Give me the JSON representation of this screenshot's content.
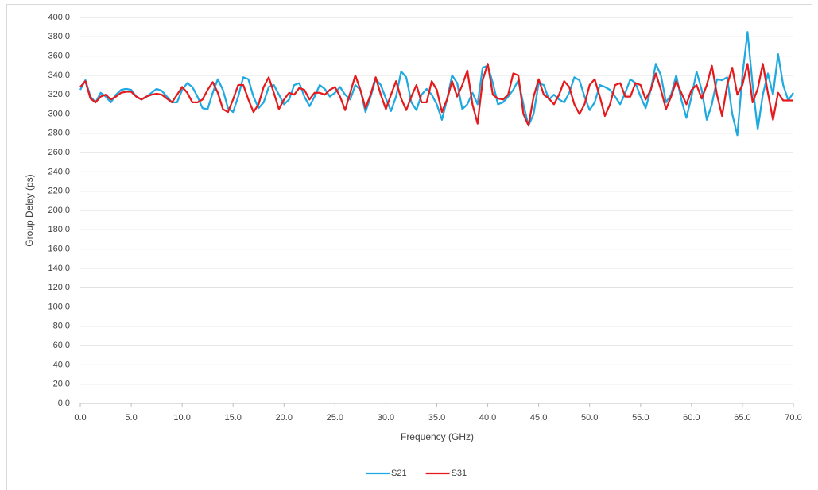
{
  "chart_data": {
    "type": "line",
    "x_label": "Frequency (GHz)",
    "y_label": "Group Delay (ps)",
    "xlim": [
      0,
      70
    ],
    "ylim": [
      0,
      400
    ],
    "xticks": [
      {
        "value": 0,
        "label": "0.0"
      },
      {
        "value": 5,
        "label": "5.0"
      },
      {
        "value": 10,
        "label": "10.0"
      },
      {
        "value": 15,
        "label": "15.0"
      },
      {
        "value": 20,
        "label": "20.0"
      },
      {
        "value": 25,
        "label": "25.0"
      },
      {
        "value": 30,
        "label": "30.0"
      },
      {
        "value": 35,
        "label": "35.0"
      },
      {
        "value": 40,
        "label": "40.0"
      },
      {
        "value": 45,
        "label": "45.0"
      },
      {
        "value": 50,
        "label": "50.0"
      },
      {
        "value": 55,
        "label": "55.0"
      },
      {
        "value": 60,
        "label": "60.0"
      },
      {
        "value": 65,
        "label": "65.0"
      },
      {
        "value": 70,
        "label": "70.0"
      }
    ],
    "yticks": [
      {
        "value": 0,
        "label": "0.0"
      },
      {
        "value": 20,
        "label": "20.0"
      },
      {
        "value": 40,
        "label": "40.0"
      },
      {
        "value": 60,
        "label": "60.0"
      },
      {
        "value": 80,
        "label": "80.0"
      },
      {
        "value": 100,
        "label": "100.0"
      },
      {
        "value": 120,
        "label": "120.0"
      },
      {
        "value": 140,
        "label": "140.0"
      },
      {
        "value": 160,
        "label": "160.0"
      },
      {
        "value": 180,
        "label": "180.0"
      },
      {
        "value": 200,
        "label": "200.0"
      },
      {
        "value": 220,
        "label": "220.0"
      },
      {
        "value": 240,
        "label": "240.0"
      },
      {
        "value": 260,
        "label": "260.0"
      },
      {
        "value": 280,
        "label": "280.0"
      },
      {
        "value": 300,
        "label": "300.0"
      },
      {
        "value": 320,
        "label": "320.0"
      },
      {
        "value": 340,
        "label": "340.0"
      },
      {
        "value": 360,
        "label": "360.0"
      },
      {
        "value": 380,
        "label": "380.0"
      },
      {
        "value": 400,
        "label": "400.0"
      }
    ],
    "grid": true,
    "legend": "bottom",
    "x": [
      0,
      0.5,
      1,
      1.5,
      2,
      2.5,
      3,
      3.5,
      4,
      4.5,
      5,
      5.5,
      6,
      6.5,
      7,
      7.5,
      8,
      8.5,
      9,
      9.5,
      10,
      10.5,
      11,
      11.5,
      12,
      12.5,
      13,
      13.5,
      14,
      14.5,
      15,
      15.5,
      16,
      16.5,
      17,
      17.5,
      18,
      18.5,
      19,
      19.5,
      20,
      20.5,
      21,
      21.5,
      22,
      22.5,
      23,
      23.5,
      24,
      24.5,
      25,
      25.5,
      26,
      26.5,
      27,
      27.5,
      28,
      28.5,
      29,
      29.5,
      30,
      30.5,
      31,
      31.5,
      32,
      32.5,
      33,
      33.5,
      34,
      34.5,
      35,
      35.5,
      36,
      36.5,
      37,
      37.5,
      38,
      38.5,
      39,
      39.5,
      40,
      40.5,
      41,
      41.5,
      42,
      42.5,
      43,
      43.5,
      44,
      44.5,
      45,
      45.5,
      46,
      46.5,
      47,
      47.5,
      48,
      48.5,
      49,
      49.5,
      50,
      50.5,
      51,
      51.5,
      52,
      52.5,
      53,
      53.5,
      54,
      54.5,
      55,
      55.5,
      56,
      56.5,
      57,
      57.5,
      58,
      58.5,
      59,
      59.5,
      60,
      60.5,
      61,
      61.5,
      62,
      62.5,
      63,
      63.5,
      64,
      64.5,
      65,
      65.5,
      66,
      66.5,
      67,
      67.5,
      68,
      68.5,
      69,
      69.5,
      70
    ],
    "series": [
      {
        "name": "S21",
        "color": "#1fa9e1",
        "values": [
          325,
          335,
          318,
          312,
          322,
          318,
          312,
          320,
          325,
          326,
          325,
          318,
          315,
          318,
          322,
          326,
          324,
          318,
          312,
          312,
          325,
          332,
          328,
          318,
          306,
          305,
          322,
          336,
          325,
          306,
          302,
          318,
          338,
          336,
          318,
          306,
          312,
          328,
          330,
          320,
          310,
          315,
          330,
          332,
          318,
          308,
          318,
          330,
          326,
          318,
          322,
          328,
          320,
          315,
          330,
          325,
          302,
          318,
          336,
          330,
          316,
          303,
          318,
          344,
          338,
          312,
          304,
          320,
          326,
          320,
          310,
          294,
          315,
          340,
          332,
          305,
          310,
          322,
          310,
          348,
          350,
          332,
          310,
          312,
          318,
          325,
          335,
          310,
          288,
          300,
          332,
          330,
          315,
          320,
          315,
          312,
          322,
          338,
          335,
          318,
          304,
          312,
          330,
          328,
          325,
          318,
          310,
          322,
          336,
          332,
          318,
          306,
          325,
          352,
          340,
          312,
          320,
          340,
          315,
          296,
          318,
          344,
          325,
          294,
          310,
          336,
          335,
          338,
          300,
          278,
          340,
          385,
          330,
          284,
          320,
          342,
          320,
          362,
          330,
          314,
          322
        ]
      },
      {
        "name": "S31",
        "color": "#e41a1c",
        "values": [
          328,
          334,
          316,
          312,
          318,
          320,
          315,
          318,
          322,
          323,
          323,
          318,
          315,
          318,
          320,
          321,
          320,
          316,
          312,
          320,
          328,
          322,
          312,
          312,
          315,
          325,
          333,
          322,
          305,
          302,
          315,
          330,
          330,
          315,
          302,
          310,
          328,
          338,
          322,
          305,
          315,
          322,
          320,
          327,
          325,
          315,
          322,
          322,
          320,
          325,
          328,
          318,
          304,
          322,
          340,
          325,
          306,
          320,
          338,
          320,
          305,
          320,
          334,
          316,
          304,
          318,
          330,
          312,
          312,
          334,
          325,
          302,
          315,
          334,
          318,
          330,
          345,
          310,
          290,
          335,
          352,
          320,
          316,
          315,
          320,
          342,
          340,
          300,
          288,
          318,
          336,
          320,
          316,
          310,
          320,
          334,
          328,
          310,
          300,
          310,
          330,
          336,
          318,
          298,
          310,
          330,
          332,
          318,
          318,
          332,
          330,
          315,
          325,
          342,
          325,
          305,
          318,
          334,
          322,
          310,
          325,
          330,
          316,
          330,
          350,
          320,
          298,
          330,
          348,
          320,
          330,
          352,
          312,
          326,
          352,
          322,
          294,
          322,
          314,
          314,
          314
        ]
      }
    ]
  }
}
